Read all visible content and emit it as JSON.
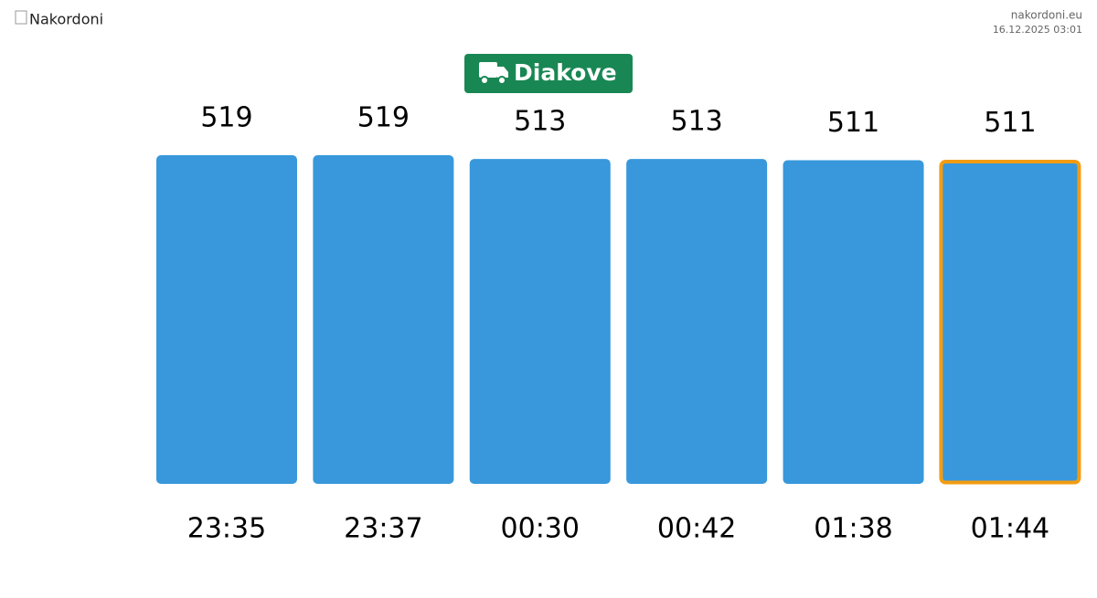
{
  "header": {
    "logo_alt": "Nakordoni",
    "site": "nakordoni.eu",
    "timestamp": "16.12.2025 03:01"
  },
  "chart_data": {
    "type": "bar",
    "title": "Diakove",
    "categories": [
      "23:35",
      "23:37",
      "00:30",
      "00:42",
      "01:38",
      "01:44"
    ],
    "values": [
      519,
      519,
      513,
      513,
      511,
      511
    ],
    "color": "#3898db",
    "highlight_index": 5,
    "highlight_color": "#f39c12",
    "ylim": [
      0,
      519
    ]
  }
}
